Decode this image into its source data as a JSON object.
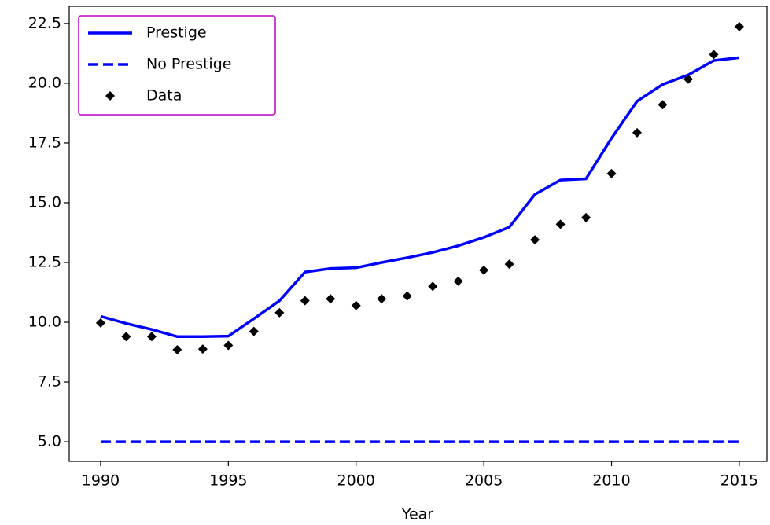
{
  "chart_data": {
    "type": "line",
    "x_label": "Year",
    "x": [
      1990,
      1991,
      1992,
      1993,
      1994,
      1995,
      1996,
      1997,
      1998,
      1999,
      2000,
      2001,
      2002,
      2003,
      2004,
      2005,
      2006,
      2007,
      2008,
      2009,
      2010,
      2011,
      2012,
      2013,
      2014,
      2015
    ],
    "series": [
      {
        "name": "Prestige",
        "color": "#0000ff",
        "linestyle": "solid",
        "values": [
          10.25,
          9.95,
          9.7,
          9.4,
          9.4,
          9.42,
          10.15,
          10.9,
          12.1,
          12.25,
          12.28,
          12.5,
          12.7,
          12.92,
          13.2,
          13.55,
          13.98,
          15.35,
          15.95,
          16.0,
          17.7,
          19.25,
          19.95,
          20.35,
          20.95,
          21.07
        ]
      },
      {
        "name": "No Prestige",
        "color": "#0000ff",
        "linestyle": "dashed",
        "values": [
          5,
          5,
          5,
          5,
          5,
          5,
          5,
          5,
          5,
          5,
          5,
          5,
          5,
          5,
          5,
          5,
          5,
          5,
          5,
          5,
          5,
          5,
          5,
          5,
          5,
          5
        ]
      },
      {
        "name": "Data",
        "color": "#000000",
        "marker": "diamond",
        "values": [
          9.97,
          9.4,
          9.4,
          8.85,
          8.88,
          9.03,
          9.62,
          10.4,
          10.9,
          10.98,
          10.7,
          10.98,
          11.1,
          11.5,
          11.72,
          12.18,
          12.43,
          13.45,
          14.1,
          14.38,
          16.22,
          17.93,
          19.1,
          20.17,
          21.2,
          22.37
        ]
      }
    ],
    "xlim": [
      1988.77,
      2016.08
    ],
    "xticks": [
      1990,
      1995,
      2000,
      2005,
      2010,
      2015
    ],
    "ylim": [
      4.18,
      23.22
    ],
    "yticks": [
      {
        "value": 5,
        "label": "5.0"
      },
      {
        "value": 7.5,
        "label": "7.5"
      },
      {
        "value": 10,
        "label": "10.0"
      },
      {
        "value": 12.5,
        "label": "12.5"
      },
      {
        "value": 15,
        "label": "15.0"
      },
      {
        "value": 17.5,
        "label": "17.5"
      },
      {
        "value": 20,
        "label": "20.0"
      },
      {
        "value": 22.5,
        "label": "22.5"
      }
    ],
    "legend_position": "upper-left",
    "legend_border_color": "#bf00bf"
  }
}
